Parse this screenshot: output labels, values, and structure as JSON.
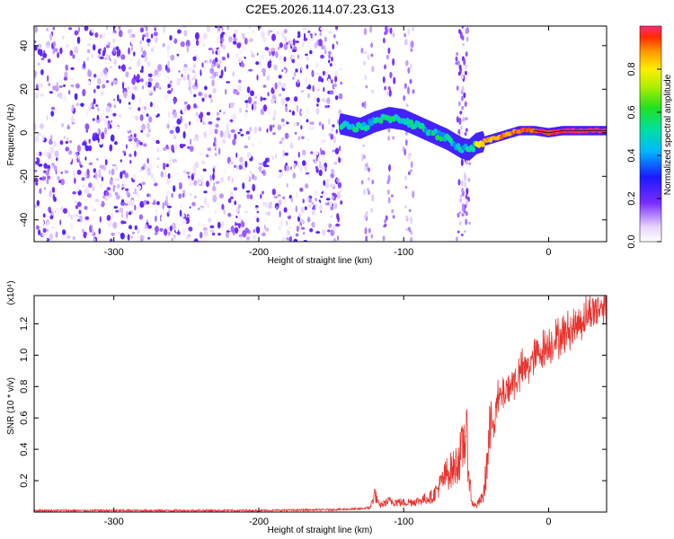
{
  "chart_data": [
    {
      "type": "heatmap",
      "title": "C2E5.2026.114.07.23.G13",
      "xlabel": "Height of straight line (km)",
      "ylabel": "Frequency (Hz)",
      "xlim": [
        -355,
        40
      ],
      "ylim": [
        -50,
        49
      ],
      "x_ticks": [
        -300,
        -200,
        -100,
        0
      ],
      "y_ticks": [
        -40,
        -20,
        0,
        20,
        40
      ],
      "colorbar": {
        "label": "Normalized spectral amplitude",
        "range": [
          0,
          1
        ],
        "ticks": [
          "0.0",
          "0.2",
          "0.4",
          "0.6",
          "0.8"
        ]
      },
      "signal_track": {
        "description_free": true,
        "x": [
          -143,
          -130,
          -120,
          -110,
          -100,
          -90,
          -80,
          -70,
          -60,
          -55,
          -50,
          -40,
          -30,
          -20,
          -10,
          0,
          10,
          20,
          30,
          40
        ],
        "y_hz": [
          4,
          2,
          5,
          7,
          6,
          3,
          0,
          -3,
          -7,
          -8,
          -5,
          -3,
          -1,
          1,
          1,
          0,
          1,
          1,
          1,
          1
        ]
      },
      "noise_region_xlim": [
        -355,
        -143
      ]
    },
    {
      "type": "line",
      "title": "",
      "xlabel": "Height of straight line (km)",
      "ylabel": "SNR (10 * v/v)",
      "multiplier": "(x10⁴)",
      "xlim": [
        -355,
        40
      ],
      "ylim": [
        0,
        1.38
      ],
      "x_ticks": [
        -300,
        -200,
        -100,
        0
      ],
      "y_ticks": [
        0.2,
        0.4,
        0.6,
        0.8,
        1.0,
        1.2
      ],
      "series": [
        {
          "color": "#e8332e",
          "x": [
            -355,
            -300,
            -250,
            -200,
            -150,
            -130,
            -123,
            -120,
            -117,
            -110,
            -100,
            -90,
            -80,
            -75,
            -70,
            -65,
            -60,
            -57,
            -55,
            -53,
            -50,
            -45,
            -42,
            -40,
            -35,
            -30,
            -25,
            -20,
            -15,
            -10,
            -5,
            0,
            10,
            20,
            30,
            40
          ],
          "y": [
            0.01,
            0.01,
            0.01,
            0.01,
            0.015,
            0.02,
            0.03,
            0.12,
            0.04,
            0.07,
            0.06,
            0.07,
            0.1,
            0.17,
            0.25,
            0.28,
            0.38,
            0.52,
            0.25,
            0.06,
            0.04,
            0.1,
            0.35,
            0.55,
            0.7,
            0.78,
            0.82,
            0.88,
            0.92,
            0.98,
            1.03,
            1.07,
            1.13,
            1.2,
            1.28,
            1.33
          ]
        }
      ]
    }
  ]
}
